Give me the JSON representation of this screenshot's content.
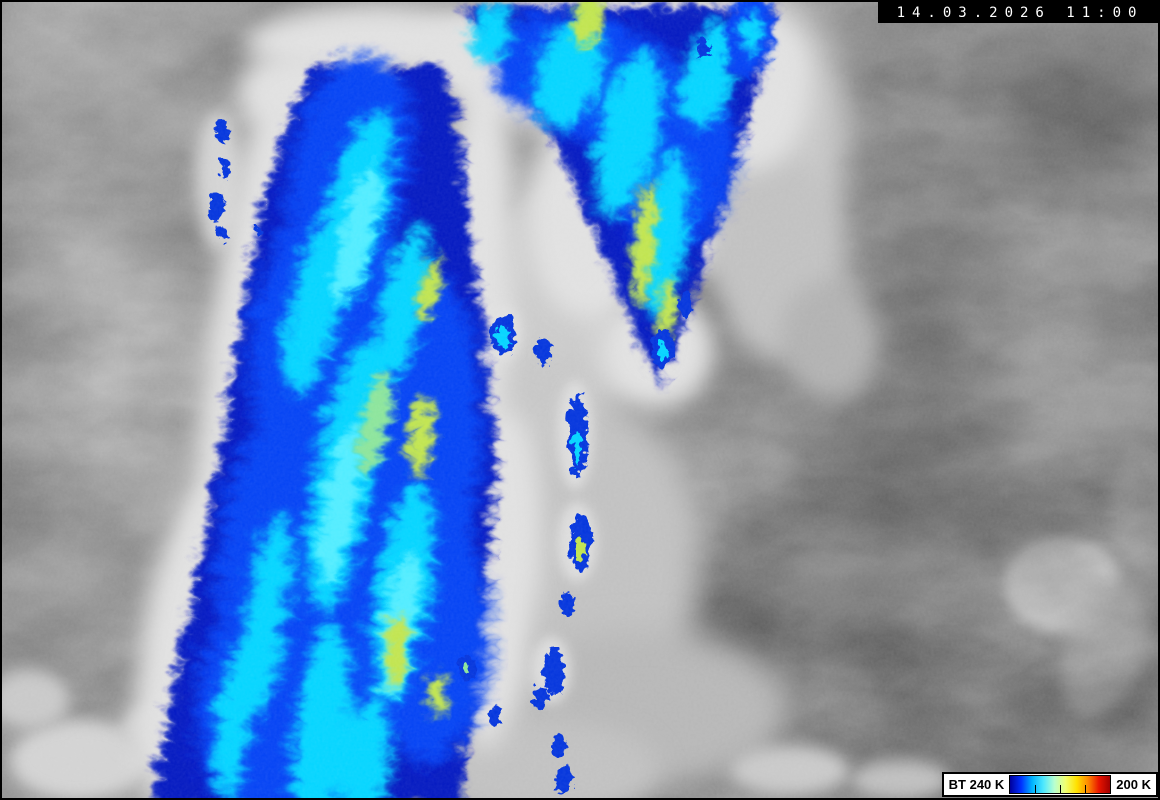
{
  "image": {
    "kind": "infrared-satellite-image",
    "description": "IR satellite picture, grayscale scene with color-enhanced cold cloud tops (brightness temperature below 240 K)"
  },
  "timestamp": {
    "date": "14.03.2026",
    "time": "11:00",
    "display": "14.03.2026 11:00"
  },
  "legend": {
    "label_left": "BT 240 K",
    "label_right": "200 K",
    "stops": [
      "#00009c",
      "#0030ff",
      "#00b4ff",
      "#4de8ff",
      "#b8ffd0",
      "#f0ff70",
      "#ffe100",
      "#ff8c00",
      "#e81400",
      "#a00000"
    ],
    "tick_positions_percent": [
      25,
      50,
      75
    ]
  },
  "palette": {
    "enhancement_dark_blue": "#0018c0",
    "enhancement_blue": "#0040f4",
    "enhancement_cyan": "#00d4ff",
    "enhancement_bright_cyan": "#50ecff",
    "enhancement_green_yellow": "#c0e44e",
    "enhancement_pale_green": "#8ae49a",
    "cloud_fringe_white": "#e0e0e0",
    "cloud_gray_light": "#c6c6c6",
    "land_gray": "#858585",
    "land_gray_dark": "#6f6f6f"
  }
}
